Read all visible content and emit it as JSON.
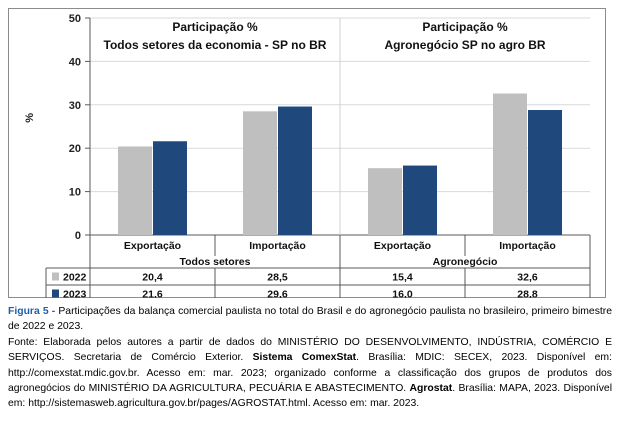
{
  "chart_data": {
    "type": "bar",
    "ylabel": "%",
    "ylim": [
      0,
      50
    ],
    "yticks": [
      0,
      10,
      20,
      30,
      40,
      50
    ],
    "groups": [
      {
        "label": "Todos setores",
        "title_line1": "Participação %",
        "title_line2": "Todos setores da economia - SP no BR"
      },
      {
        "label": "Agronegócio",
        "title_line1": "Participação %",
        "title_line2": "Agronegócio SP no agro BR"
      }
    ],
    "categories": [
      "Exportação",
      "Importação",
      "Exportação",
      "Importação"
    ],
    "series": [
      {
        "name": "2022",
        "color": "#bfbfbf",
        "values": [
          20.4,
          28.5,
          15.4,
          32.6
        ],
        "labels": [
          "20,4",
          "28,5",
          "15,4",
          "32,6"
        ]
      },
      {
        "name": "2023",
        "color": "#1f497d",
        "values": [
          21.6,
          29.6,
          16.0,
          28.8
        ],
        "labels": [
          "21,6",
          "29,6",
          "16,0",
          "28,8"
        ]
      }
    ],
    "grid": true
  },
  "caption": {
    "figure_label": "Figura 5 -",
    "figure_text": " Participações da balança comercial paulista no total do Brasil e do agronegócio paulista no brasileiro, primeiro bimestre de 2022 e 2023.",
    "source_p1": "Fonte: Elaborada pelos autores a partir de dados do MINISTÉRIO DO DESENVOLVIMENTO, INDÚSTRIA, COMÉRCIO E SERVIÇOS. Secretaria de Comércio Exterior. ",
    "source_b1": "Sistema ComexStat",
    "source_p2": ". Brasília: MDIC: SECEX, 2023. Disponível em: http://comexstat.mdic.gov.br. Acesso em: mar. 2023; organizado conforme a classificação dos grupos de produtos dos agronegócios do MINISTÉRIO DA AGRICULTURA, PECUÁRIA E ABASTECIMENTO. ",
    "source_b2": "Agrostat",
    "source_p3": ". Brasília: MAPA, 2023. Disponível em: http://sistemasweb.agricultura.gov.br/pages/AGROSTAT.html. Acesso em: mar. 2023."
  }
}
